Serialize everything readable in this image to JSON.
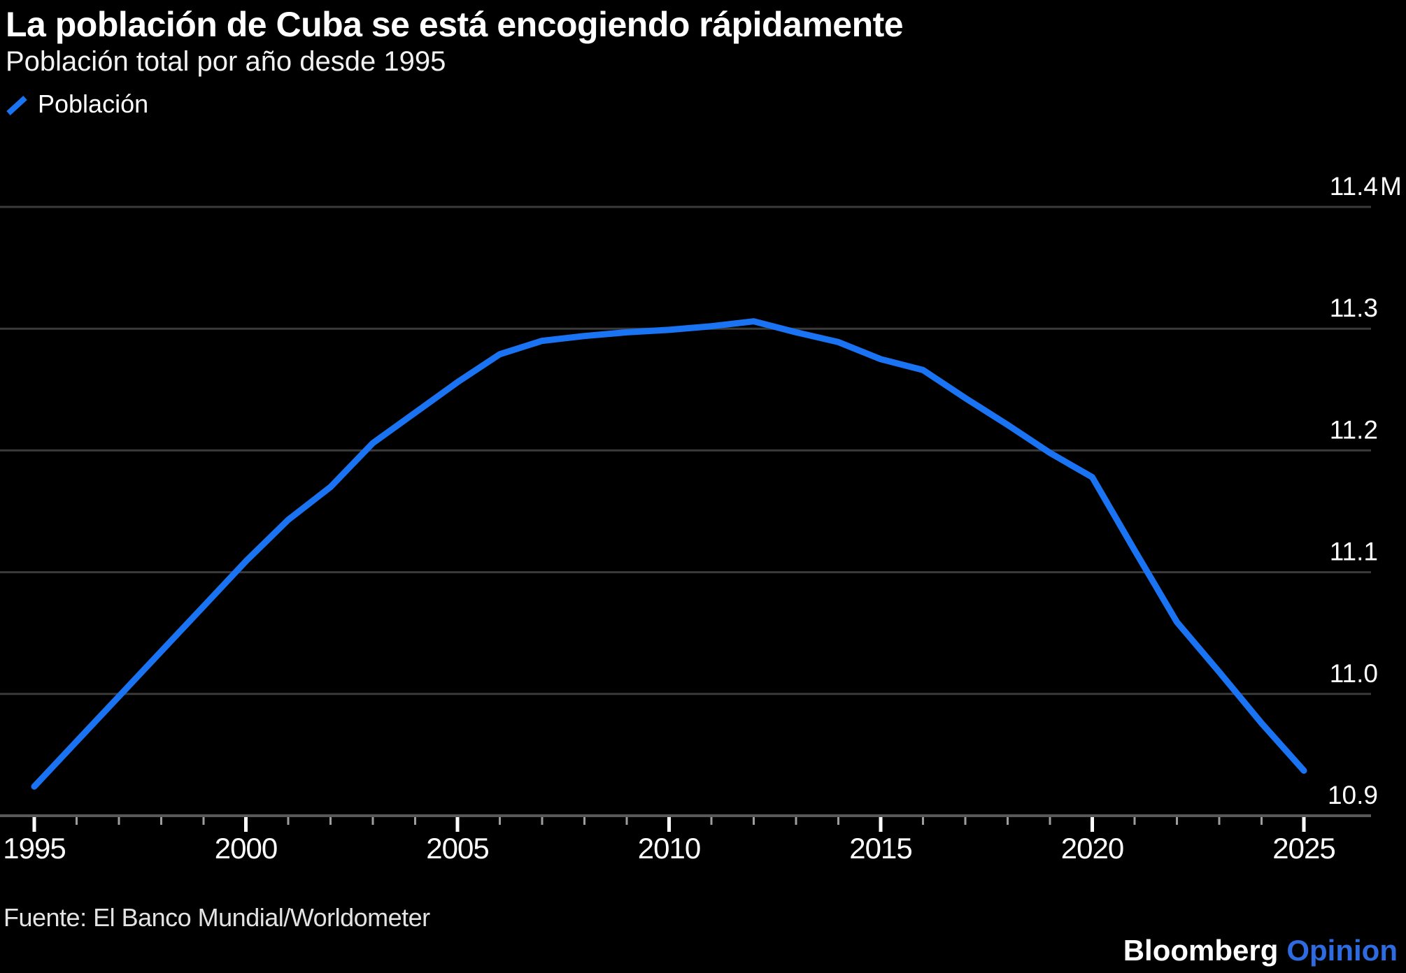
{
  "header": {
    "title": "La población de Cuba se está encogiendo rápidamente",
    "subtitle": "Población total por año desde 1995"
  },
  "legend": {
    "label": "Población"
  },
  "footer": {
    "source": "Fuente: El Banco Mundial/Worldometer",
    "brand": "Bloomberg",
    "brand_suffix": "Opinion"
  },
  "colors": {
    "background": "#000000",
    "line": "#1a73f2",
    "grid": "#3a3a3a",
    "axis": "#585858",
    "text": "#ffffff",
    "muted_text": "#e3e3e3",
    "minor_tick": "#9e9e9e",
    "brand_blue": "#2e6be0"
  },
  "chart_data": {
    "type": "line",
    "title": "La población de Cuba se está encogiendo rápidamente",
    "subtitle": "Población total por año desde 1995",
    "x": [
      1995,
      1996,
      1997,
      1998,
      1999,
      2000,
      2001,
      2002,
      2003,
      2004,
      2005,
      2006,
      2007,
      2008,
      2009,
      2010,
      2011,
      2012,
      2013,
      2014,
      2015,
      2016,
      2017,
      2018,
      2019,
      2020,
      2021,
      2022,
      2023,
      2024,
      2025
    ],
    "series": [
      {
        "name": "Población",
        "values": [
          10.924,
          10.961,
          10.998,
          11.035,
          11.072,
          11.109,
          11.143,
          11.17,
          11.206,
          11.231,
          11.256,
          11.279,
          11.29,
          11.294,
          11.297,
          11.299,
          11.302,
          11.306,
          11.297,
          11.289,
          11.275,
          11.266,
          11.243,
          11.221,
          11.198,
          11.178,
          11.118,
          11.059,
          11.018,
          10.976,
          10.937
        ]
      }
    ],
    "units": "M",
    "ylim": [
      10.9,
      11.45
    ],
    "xlim": [
      1995,
      2026.5
    ],
    "y_ticks": [
      {
        "value": 11.4,
        "label": "11.4",
        "suffix": "M"
      },
      {
        "value": 11.3,
        "label": "11.3"
      },
      {
        "value": 11.2,
        "label": "11.2"
      },
      {
        "value": 11.1,
        "label": "11.1"
      },
      {
        "value": 11.0,
        "label": "11.0"
      },
      {
        "value": 10.9,
        "label": "10.9"
      }
    ],
    "x_ticks_major": [
      1995,
      2000,
      2005,
      2010,
      2015,
      2020,
      2025
    ],
    "grid": "horizontal",
    "legend_entries": [
      "Población"
    ],
    "legend_position": "top-left",
    "source": "Fuente: El Banco Mundial/Worldometer"
  }
}
